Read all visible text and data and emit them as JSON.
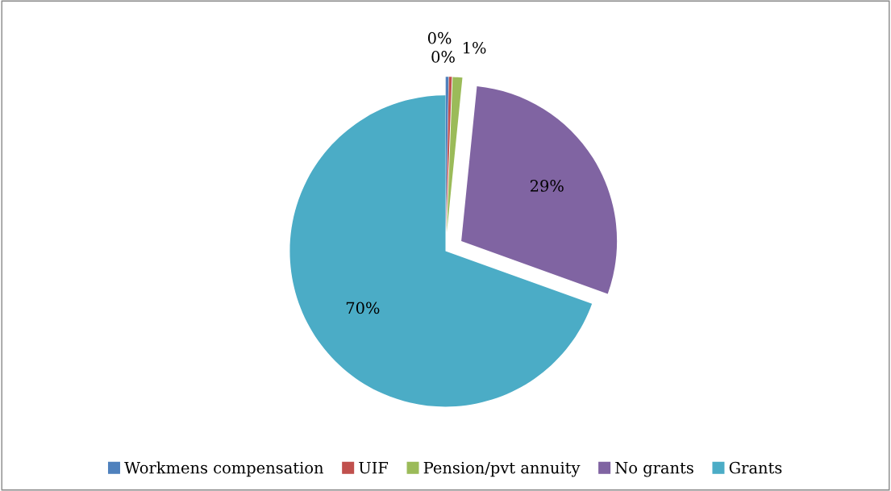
{
  "chart_data": {
    "type": "pie",
    "categories": [
      "Workmens compensation",
      "UIF",
      "Pension/pvt annuity",
      "No grants",
      "Grants"
    ],
    "values": [
      0.3,
      0.3,
      1,
      28.9,
      69.5
    ],
    "value_labels": [
      "0%",
      "0%",
      "1%",
      "29%",
      "70%"
    ],
    "colors": [
      "#4f81bd",
      "#c0504d",
      "#9bbb59",
      "#8064a2",
      "#4bacc6"
    ],
    "legend": "bottom"
  }
}
